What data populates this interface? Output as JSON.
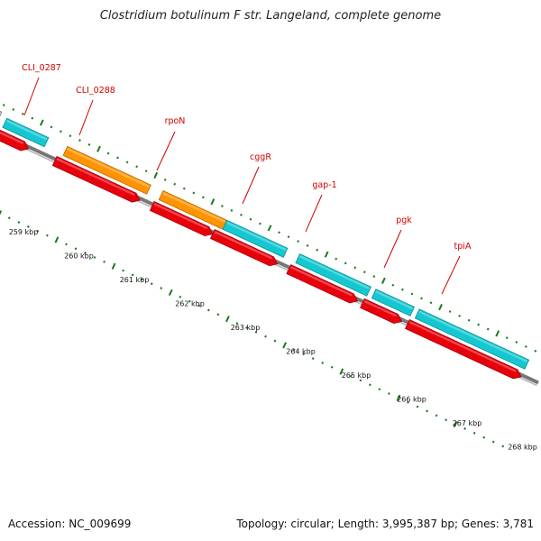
{
  "title": "Clostridium botulinum F str. Langeland, complete genome",
  "footer": {
    "accession": "Accession: NC_009699",
    "summary": "Topology: circular; Length: 3,995,387 bp; Genes: 3,781"
  },
  "colors": {
    "gene_label": "#d40000",
    "forward_cds": "#e8000b",
    "blue_feature": "#14c8d2",
    "orange_feature": "#ff9400",
    "gray_feature": "#bdbdbd",
    "axis": "#777777",
    "ticks": "#1a7a1a"
  },
  "gene_labels": [
    "CLI_0287",
    "CLI_0288",
    "rpoN",
    "cggR",
    "gap-1",
    "pgk",
    "tpiA"
  ],
  "scale_labels": [
    "259 kbp",
    "260 kbp",
    "261 kbp",
    "262 kbp",
    "263 kbp",
    "264 kbp",
    "265 kbp",
    "266 kbp",
    "267 kbp",
    "268 kbp"
  ]
}
